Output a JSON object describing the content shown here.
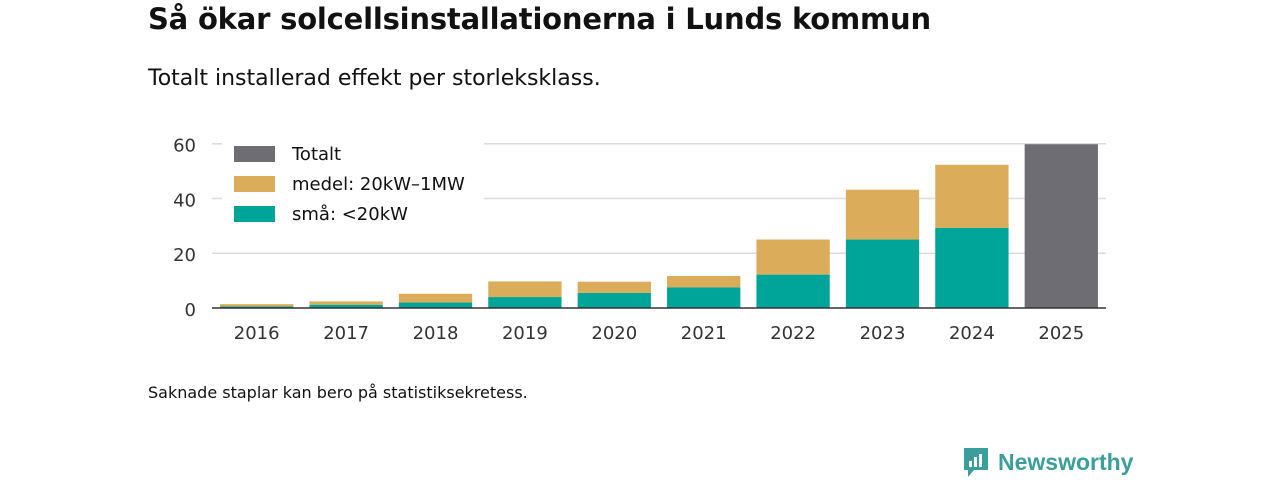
{
  "title": "Så ökar solcellsinstallationerna i Lunds kommun",
  "subtitle": "Totalt installerad effekt per storleksklass.",
  "note": "Saknade staplar kan bero på statistiksekretess.",
  "brand": {
    "name": "Newsworthy",
    "color": "#3a9e9a",
    "icon": "newsworthy-logo-icon"
  },
  "chart_data": {
    "type": "bar",
    "stacked": true,
    "title": "Så ökar solcellsinstallationerna i Lunds kommun",
    "subtitle": "Totalt installerad effekt per storleksklass.",
    "xlabel": "",
    "ylabel": "",
    "ylim": [
      0,
      65
    ],
    "yticks": [
      0,
      20,
      40,
      60
    ],
    "grid": true,
    "legend_position": "top-left",
    "categories": [
      "2016",
      "2017",
      "2018",
      "2019",
      "2020",
      "2021",
      "2022",
      "2023",
      "2024",
      "2025"
    ],
    "series": [
      {
        "name": "små: <20kW",
        "color": "#00a59a",
        "values": [
          0.6,
          1.2,
          2.0,
          4.0,
          5.5,
          7.5,
          12.2,
          25.0,
          29.3,
          null
        ]
      },
      {
        "name": "medel: 20kW–1MW",
        "color": "#dbac5a",
        "values": [
          0.8,
          1.2,
          3.2,
          5.7,
          4.1,
          4.2,
          12.8,
          18.2,
          23.0,
          null
        ]
      },
      {
        "name": "Totalt",
        "color": "#6e6d73",
        "values": [
          null,
          null,
          null,
          null,
          null,
          null,
          null,
          null,
          null,
          59.8
        ]
      }
    ],
    "legend": [
      {
        "name": "Totalt",
        "color": "#6e6d73"
      },
      {
        "name": "medel: 20kW–1MW",
        "color": "#dbac5a"
      },
      {
        "name": "små: <20kW",
        "color": "#00a59a"
      }
    ]
  }
}
